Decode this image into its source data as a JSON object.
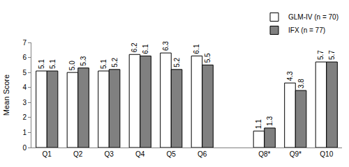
{
  "chart_data": {
    "type": "bar",
    "y_label": "Mean Score",
    "categories": [
      "Q1",
      "Q2",
      "Q3",
      "Q4",
      "Q5",
      "Q6",
      null,
      "Q8*",
      "Q9*",
      "Q10"
    ],
    "series": [
      {
        "name": "GLM-IV (n = 70)",
        "color": "#ffffff",
        "values": [
          5.1,
          5.0,
          5.1,
          6.2,
          6.3,
          6.1,
          null,
          1.1,
          4.3,
          5.7
        ],
        "value_labels": [
          "5.1",
          "5.0",
          "5.1",
          "6.2",
          "6.3",
          "6.1",
          null,
          "1.1",
          "4.3",
          "5.7"
        ]
      },
      {
        "name": "IFX (n = 77)",
        "color": "#808080",
        "values": [
          5.1,
          5.3,
          5.2,
          6.1,
          5.2,
          5.5,
          null,
          1.3,
          3.8,
          5.7
        ],
        "value_labels": [
          "5.1",
          "5.3",
          "5.2",
          "6.1",
          "5.2",
          "5.5",
          null,
          "1.3",
          "3.8",
          "5.7"
        ]
      }
    ],
    "ylim": [
      0,
      7
    ],
    "yticks": [
      0,
      1,
      2,
      3,
      4,
      5,
      6,
      7
    ],
    "grid": false,
    "legend": "top right",
    "data_labels": true
  }
}
